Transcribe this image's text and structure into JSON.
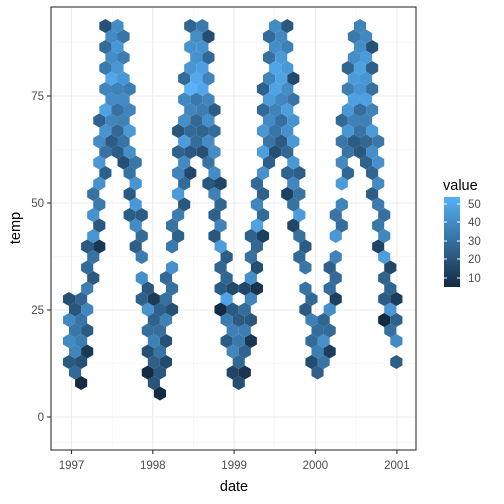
{
  "chart_data": {
    "type": "hexbin",
    "title": "",
    "xlabel": "date",
    "ylabel": "temp",
    "xlim": [
      "1996-11-15",
      "2001-03-01"
    ],
    "ylim": [
      -7,
      95
    ],
    "x_ticks": [
      "1997",
      "1998",
      "1999",
      "2000",
      "2001"
    ],
    "y_ticks": [
      "0",
      "25",
      "50",
      "75"
    ],
    "grid": true,
    "legend": {
      "title": "value",
      "position": "right",
      "labels": [
        "10",
        "20",
        "30",
        "40",
        "50"
      ],
      "range": [
        1,
        55
      ],
      "colors": {
        "low": "#132B43",
        "high": "#56B1F7"
      }
    },
    "series": [
      {
        "values": [
          {
            "x": "1997-01-01",
            "y": 45
          },
          {
            "x": "1997-01-01",
            "y": 35
          },
          {
            "x": "1997-01-01",
            "y": 25
          },
          {
            "x": "1997-01-01",
            "y": 15
          },
          {
            "x": "1997-01-01",
            "y": 0
          },
          {
            "x": "1997-03-01",
            "y": 55
          },
          {
            "x": "1997-03-01",
            "y": 40
          },
          {
            "x": "1997-03-01",
            "y": 30
          },
          {
            "x": "1997-03-01",
            "y": 20
          },
          {
            "x": "1997-06-01",
            "y": 85
          },
          {
            "x": "1997-06-01",
            "y": 75
          },
          {
            "x": "1997-06-01",
            "y": 65
          },
          {
            "x": "1997-08-01",
            "y": 75
          },
          {
            "x": "1997-08-01",
            "y": 65
          },
          {
            "x": "1997-10-01",
            "y": 55
          },
          {
            "x": "1997-12-01",
            "y": 40
          },
          {
            "x": "1997-12-01",
            "y": 30
          },
          {
            "x": "1998-01-01",
            "y": 35
          },
          {
            "x": "1998-01-01",
            "y": 25
          },
          {
            "x": "1998-01-01",
            "y": 10
          },
          {
            "x": "1998-04-01",
            "y": 45
          },
          {
            "x": "1998-04-01",
            "y": 30
          },
          {
            "x": "1998-07-01",
            "y": 85
          },
          {
            "x": "1998-07-01",
            "y": 75
          },
          {
            "x": "1998-07-01",
            "y": 65
          },
          {
            "x": "1998-09-01",
            "y": 75
          },
          {
            "x": "1998-09-01",
            "y": 60
          },
          {
            "x": "1998-11-01",
            "y": 50
          },
          {
            "x": "1999-01-01",
            "y": 40
          },
          {
            "x": "1999-01-01",
            "y": 25
          },
          {
            "x": "1999-01-01",
            "y": -3
          },
          {
            "x": "1999-04-01",
            "y": 40
          },
          {
            "x": "1999-04-01",
            "y": 25
          },
          {
            "x": "1999-07-01",
            "y": 90
          },
          {
            "x": "1999-07-01",
            "y": 80
          },
          {
            "x": "1999-07-01",
            "y": 65
          },
          {
            "x": "1999-09-01",
            "y": 75
          },
          {
            "x": "1999-09-01",
            "y": 60
          },
          {
            "x": "1999-11-01",
            "y": 45
          },
          {
            "x": "2000-01-01",
            "y": 45
          },
          {
            "x": "2000-01-01",
            "y": 30
          },
          {
            "x": "2000-01-01",
            "y": 10
          },
          {
            "x": "2000-03-01",
            "y": 50
          },
          {
            "x": "2000-03-01",
            "y": 35
          },
          {
            "x": "2000-06-01",
            "y": 80
          },
          {
            "x": "2000-06-01",
            "y": 70
          },
          {
            "x": "2000-06-01",
            "y": 60
          },
          {
            "x": "2000-08-01",
            "y": 75
          },
          {
            "x": "2000-08-01",
            "y": 60
          },
          {
            "x": "2000-10-01",
            "y": 45
          },
          {
            "x": "2000-12-01",
            "y": 25
          },
          {
            "x": "2000-12-01",
            "y": 10
          },
          {
            "x": "2001-01-01",
            "y": 0
          }
        ]
      }
    ]
  }
}
